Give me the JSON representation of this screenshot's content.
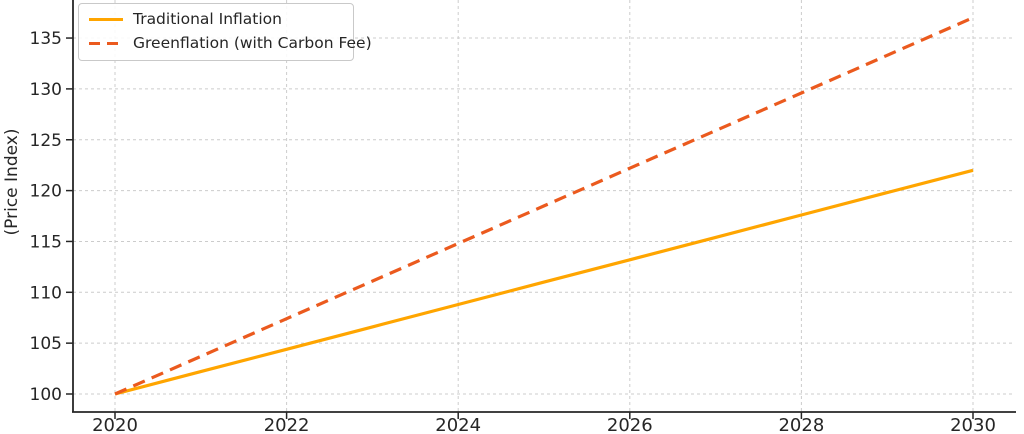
{
  "figure": {
    "background": "#ffffff",
    "text_color": "#262626"
  },
  "chart_data": {
    "type": "line",
    "title": "",
    "xlabel": "",
    "ylabel": "(Price Index)",
    "x": [
      2020,
      2021,
      2022,
      2023,
      2024,
      2025,
      2026,
      2027,
      2028,
      2029,
      2030
    ],
    "series": [
      {
        "name": "Traditional Inflation",
        "color": "#FFA500",
        "style": "solid",
        "line_width": 3.2,
        "values": [
          100.0,
          102.2,
          104.4,
          106.6,
          108.8,
          111.0,
          113.2,
          115.4,
          117.6,
          119.8,
          122.0
        ]
      },
      {
        "name": "Greenflation (with Carbon Fee)",
        "color": "#EB5A1E",
        "style": "dashed",
        "line_width": 3.2,
        "values": [
          100.0,
          103.7,
          107.4,
          111.1,
          114.8,
          118.5,
          122.2,
          125.9,
          129.6,
          133.3,
          137.0
        ]
      }
    ],
    "xticks": [
      2020,
      2022,
      2024,
      2026,
      2028,
      2030
    ],
    "yticks": [
      100,
      105,
      110,
      115,
      120,
      125,
      130,
      135
    ],
    "xlim": [
      2019.5,
      2030.6
    ],
    "ylim_visible": [
      98.2,
      138.7
    ],
    "grid": true,
    "grid_color": "#cccccc",
    "grid_dash": "3 3",
    "axis_color": "#262626",
    "legend_position": "upper left"
  }
}
